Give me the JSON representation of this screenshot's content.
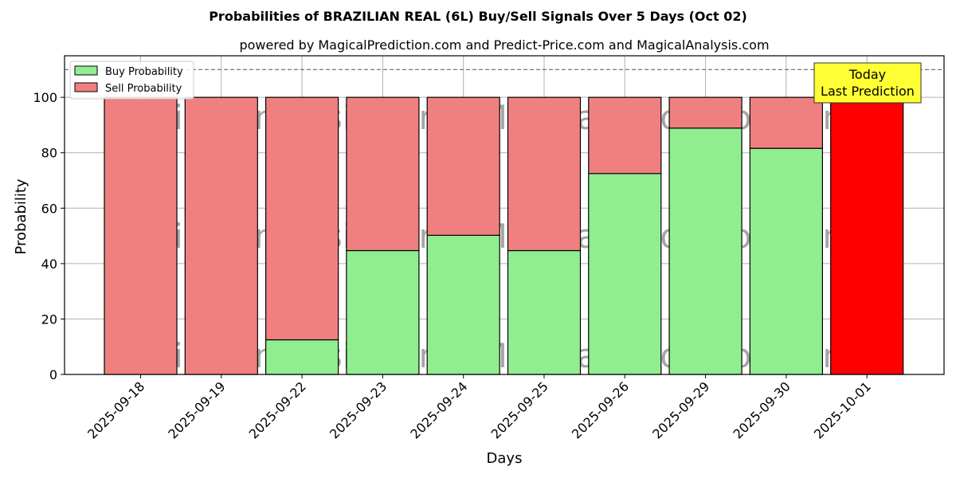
{
  "chart_data": {
    "type": "bar",
    "stacked": true,
    "title": "Probabilities of BRAZILIAN REAL (6L) Buy/Sell Signals Over 5 Days (Oct 02)",
    "subtitle": "powered by MagicalPrediction.com and Predict-Price.com and MagicalAnalysis.com",
    "xlabel": "Days",
    "ylabel": "Probability",
    "ylim": [
      0,
      115
    ],
    "yticks": [
      0,
      20,
      40,
      60,
      80,
      100
    ],
    "grid": true,
    "legend_position": "top-left",
    "reference_line": 110,
    "categories": [
      "2025-09-18",
      "2025-09-19",
      "2025-09-22",
      "2025-09-23",
      "2025-09-24",
      "2025-09-25",
      "2025-09-26",
      "2025-09-29",
      "2025-09-30",
      "2025-10-01"
    ],
    "series": [
      {
        "name": "Buy Probability",
        "color": "#90ee90",
        "values": [
          0,
          0,
          12.5,
          44.7,
          50.2,
          44.7,
          72.5,
          88.9,
          81.6,
          0
        ]
      },
      {
        "name": "Sell Probability",
        "color": "#f08080",
        "values": [
          100,
          100,
          87.5,
          55.3,
          49.8,
          55.3,
          27.5,
          11.1,
          18.4,
          100
        ]
      }
    ],
    "highlight": {
      "index": 9,
      "color": "#ff0000"
    },
    "annotation": {
      "lines": [
        "Today",
        "Last Prediction"
      ],
      "color": "#ffff33"
    },
    "watermarks": [
      "MagicalAnalysis.com",
      "MagicalPrediction.com"
    ]
  }
}
